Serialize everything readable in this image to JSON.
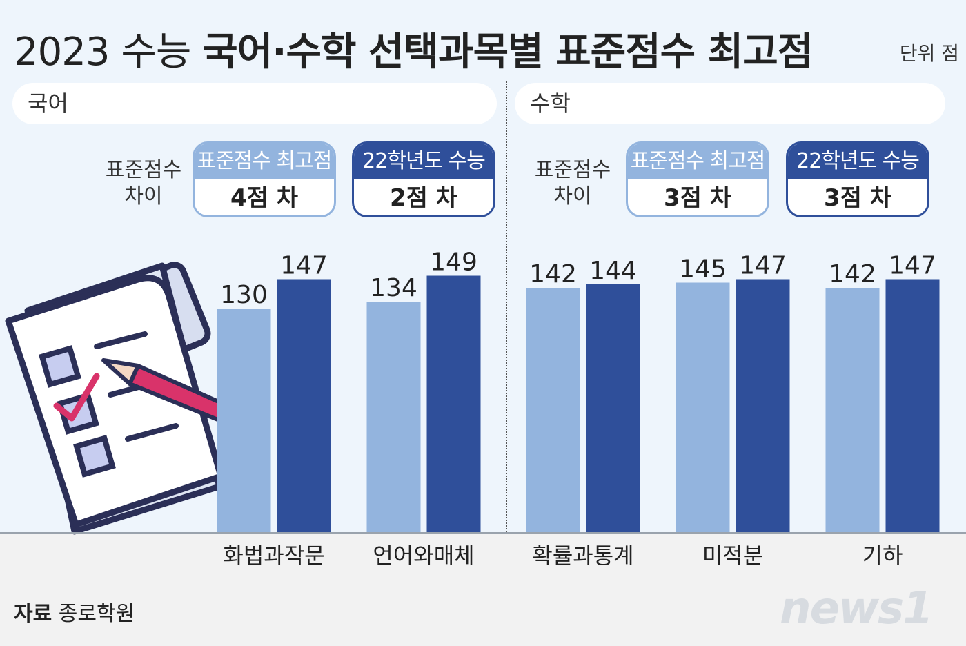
{
  "title": {
    "regular": "2023 수능 ",
    "bold": "국어·수학 선택과목별 표준점수 최고점"
  },
  "unit": "단위 점",
  "panels": {
    "left": {
      "label": "국어",
      "diff_label": "표준점수\n차이",
      "pill_a": {
        "header": "표준점수 최고점",
        "value": "4점 차"
      },
      "pill_b": {
        "header": "22학년도 수능",
        "value": "2점 차"
      }
    },
    "right": {
      "label": "수학",
      "diff_label": "표준점수\n차이",
      "pill_a": {
        "header": "표준점수 최고점",
        "value": "3점 차"
      },
      "pill_b": {
        "header": "22학년도 수능",
        "value": "3점 차"
      }
    }
  },
  "colors": {
    "light": "#93b4de",
    "dark": "#2f4f9a"
  },
  "source": {
    "label": "자료",
    "name": "종로학원"
  },
  "logo": "news1",
  "chart_data": {
    "type": "bar",
    "categories": [
      "화법과작문",
      "언어와매체",
      "확률과통계",
      "미적분",
      "기하"
    ],
    "series": [
      {
        "values": [
          130,
          134,
          142,
          145,
          142
        ],
        "color": "#93b4de"
      },
      {
        "values": [
          147,
          149,
          144,
          147,
          147
        ],
        "color": "#2f4f9a"
      }
    ]
  }
}
